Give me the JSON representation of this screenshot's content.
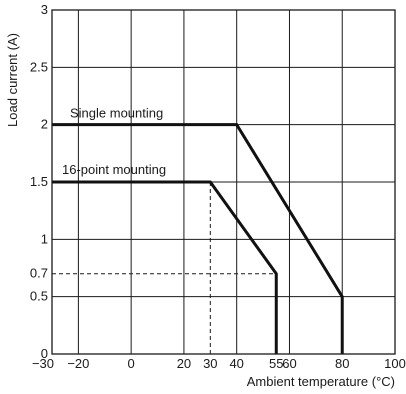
{
  "chart_data": {
    "type": "line",
    "xlabel": "Ambient temperature (°C)",
    "ylabel": "Load current (A)",
    "xlim": [
      -30,
      100
    ],
    "ylim": [
      0,
      3
    ],
    "grid": true,
    "x_ticks": [
      -30,
      -20,
      0,
      20,
      30,
      40,
      55,
      60,
      80,
      100
    ],
    "x_tick_labels": [
      "−30",
      "−20",
      "0",
      "20",
      "30",
      "40",
      "55",
      "60",
      "80",
      "100"
    ],
    "x_gridlines": [
      -20,
      0,
      20,
      40,
      60,
      80
    ],
    "y_ticks": [
      0,
      0.5,
      0.7,
      1,
      1.5,
      2,
      2.5,
      3
    ],
    "y_tick_labels": [
      "0",
      "0.5",
      "0.7",
      "1",
      "1.5",
      "2",
      "2.5",
      "3"
    ],
    "y_gridlines": [
      0.5,
      1,
      1.5,
      2,
      2.5
    ],
    "series": [
      {
        "name": "Single mounting",
        "x": [
          -30,
          40,
          80,
          80
        ],
        "y": [
          2,
          2,
          0.5,
          0
        ]
      },
      {
        "name": "16-point mounting",
        "x": [
          -30,
          30,
          55,
          55
        ],
        "y": [
          1.5,
          1.5,
          0.7,
          0
        ]
      }
    ],
    "reference_lines": [
      {
        "x": [
          -30,
          55
        ],
        "y": [
          0.7,
          0.7
        ]
      },
      {
        "x": [
          30,
          30
        ],
        "y": [
          1.5,
          0
        ]
      }
    ]
  }
}
